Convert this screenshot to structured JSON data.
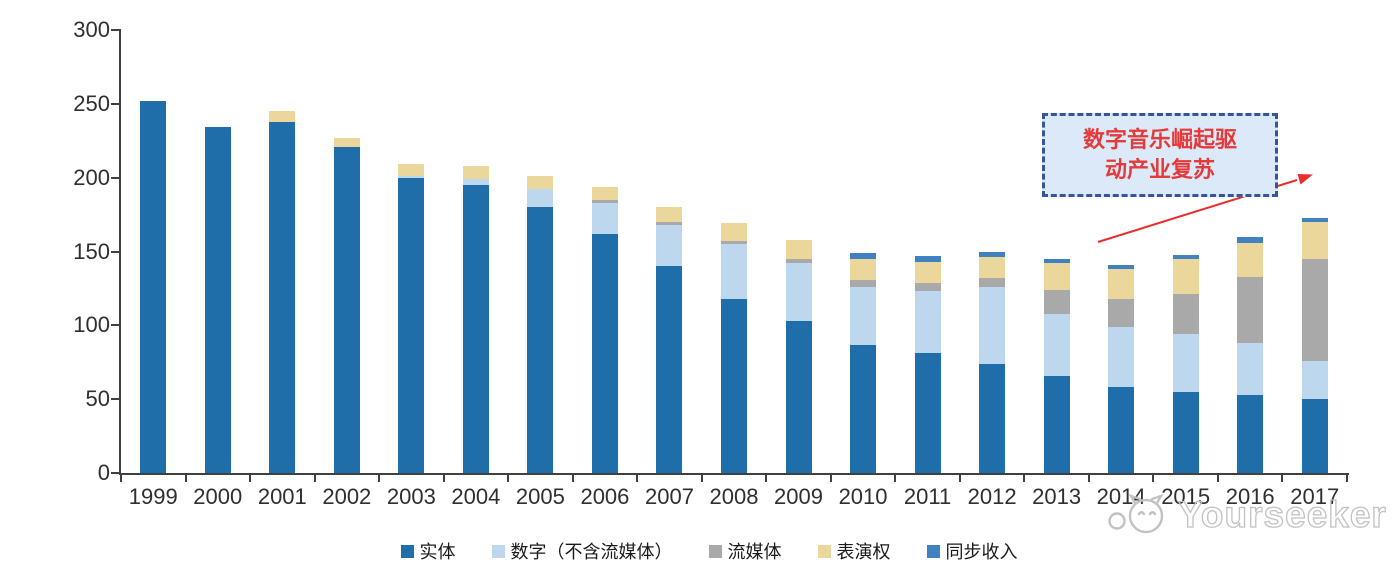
{
  "chart_data": {
    "type": "bar",
    "stacked": true,
    "title": "",
    "xlabel": "",
    "ylabel": "",
    "ylim": [
      0,
      300
    ],
    "y_ticks": [
      0,
      50,
      100,
      150,
      200,
      250,
      300
    ],
    "grid": false,
    "legend_position": "bottom",
    "categories": [
      "1999",
      "2000",
      "2001",
      "2002",
      "2003",
      "2004",
      "2005",
      "2006",
      "2007",
      "2008",
      "2009",
      "2010",
      "2011",
      "2012",
      "2013",
      "2014",
      "2015",
      "2016",
      "2017"
    ],
    "series": [
      {
        "name": "实体",
        "color": "#1F6DA9",
        "values": [
          252,
          234,
          238,
          221,
          200,
          195,
          180,
          162,
          140,
          118,
          103,
          87,
          81,
          74,
          66,
          58,
          55,
          53,
          50
        ]
      },
      {
        "name": "数字（不含流媒体）",
        "color": "#BDD7EE",
        "values": [
          0,
          0,
          0,
          0,
          1,
          4,
          12,
          21,
          28,
          37,
          39,
          39,
          42,
          52,
          42,
          41,
          39,
          35,
          26
        ]
      },
      {
        "name": "流媒体",
        "color": "#A9A9A9",
        "values": [
          0,
          0,
          0,
          0,
          0,
          0,
          0,
          2,
          2,
          2,
          3,
          5,
          6,
          6,
          16,
          19,
          27,
          45,
          69
        ]
      },
      {
        "name": "表演权",
        "color": "#EBD79C",
        "values": [
          0,
          0,
          7,
          6,
          8,
          9,
          9,
          9,
          10,
          12,
          13,
          14,
          14,
          14,
          18,
          20,
          24,
          23,
          25
        ]
      },
      {
        "name": "同步收入",
        "color": "#4081C2",
        "values": [
          0,
          0,
          0,
          0,
          0,
          0,
          0,
          0,
          0,
          0,
          0,
          4,
          4,
          4,
          3,
          3,
          3,
          4,
          3
        ]
      }
    ]
  },
  "axis": {
    "color": "#404040",
    "label_color": "#2f2f2f"
  },
  "annotation": {
    "line1": "数字音乐崛起驱",
    "line2": "动产业复苏",
    "text_color": "#E43A3A",
    "border_color": "#35569B",
    "fill_color": "#DCE9F8",
    "arrow_color": "#EC2D2E"
  },
  "watermark": {
    "text": "Yourseeker",
    "color": "#c2c2c2"
  }
}
